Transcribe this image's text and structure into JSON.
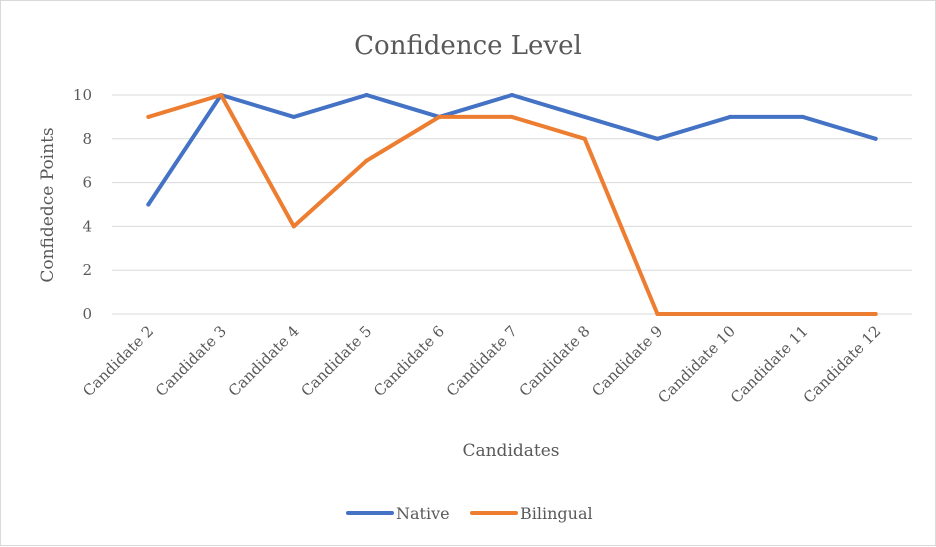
{
  "chart_data": {
    "type": "line",
    "title": "Confidence Level",
    "xlabel": "Candidates",
    "ylabel": "Confidedce Points",
    "categories": [
      "Candidate 2",
      "Candidate 3",
      "Candidate 4",
      "Candidate 5",
      "Candidate 6",
      "Candidate 7",
      "Candidate 8",
      "Candidate 9",
      "Candidate 10",
      "Candidate 11",
      "Candidate 12"
    ],
    "series": [
      {
        "name": "Native",
        "color": "#4472c4",
        "values": [
          5,
          10,
          9,
          10,
          9,
          10,
          9,
          8,
          9,
          9,
          8
        ]
      },
      {
        "name": "Bilingual",
        "color": "#ed7d31",
        "values": [
          9,
          10,
          4,
          7,
          9,
          9,
          8,
          0,
          0,
          0,
          0
        ]
      }
    ],
    "ylim": [
      0,
      10
    ],
    "yticks": [
      0,
      2,
      4,
      6,
      8,
      10
    ],
    "grid": true,
    "legend_position": "bottom"
  }
}
